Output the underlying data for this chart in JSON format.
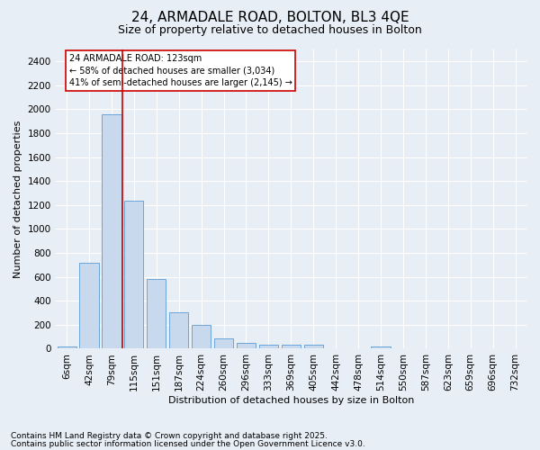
{
  "title1": "24, ARMADALE ROAD, BOLTON, BL3 4QE",
  "title2": "Size of property relative to detached houses in Bolton",
  "xlabel": "Distribution of detached houses by size in Bolton",
  "ylabel": "Number of detached properties",
  "categories": [
    "6sqm",
    "42sqm",
    "79sqm",
    "115sqm",
    "151sqm",
    "187sqm",
    "224sqm",
    "260sqm",
    "296sqm",
    "333sqm",
    "369sqm",
    "405sqm",
    "442sqm",
    "478sqm",
    "514sqm",
    "550sqm",
    "587sqm",
    "623sqm",
    "659sqm",
    "696sqm",
    "732sqm"
  ],
  "values": [
    15,
    720,
    1960,
    1240,
    580,
    305,
    200,
    85,
    50,
    35,
    30,
    35,
    5,
    0,
    15,
    0,
    0,
    0,
    0,
    0,
    0
  ],
  "bar_color": "#c8d9ed",
  "bar_edge_color": "#5b9bd5",
  "vline_color": "#cc0000",
  "vline_x_index": 3,
  "annotation_line1": "24 ARMADALE ROAD: 123sqm",
  "annotation_line2": "← 58% of detached houses are smaller (3,034)",
  "annotation_line3": "41% of semi-detached houses are larger (2,145) →",
  "annotation_box_color": "#cc0000",
  "ylim": [
    0,
    2500
  ],
  "yticks": [
    0,
    200,
    400,
    600,
    800,
    1000,
    1200,
    1400,
    1600,
    1800,
    2000,
    2200,
    2400
  ],
  "bg_color": "#e8eef5",
  "plot_bg_color": "#e8eef5",
  "footer1": "Contains HM Land Registry data © Crown copyright and database right 2025.",
  "footer2": "Contains public sector information licensed under the Open Government Licence v3.0.",
  "title1_fontsize": 11,
  "title2_fontsize": 9,
  "axis_label_fontsize": 8,
  "tick_fontsize": 7.5,
  "annotation_fontsize": 7,
  "footer_fontsize": 6.5
}
